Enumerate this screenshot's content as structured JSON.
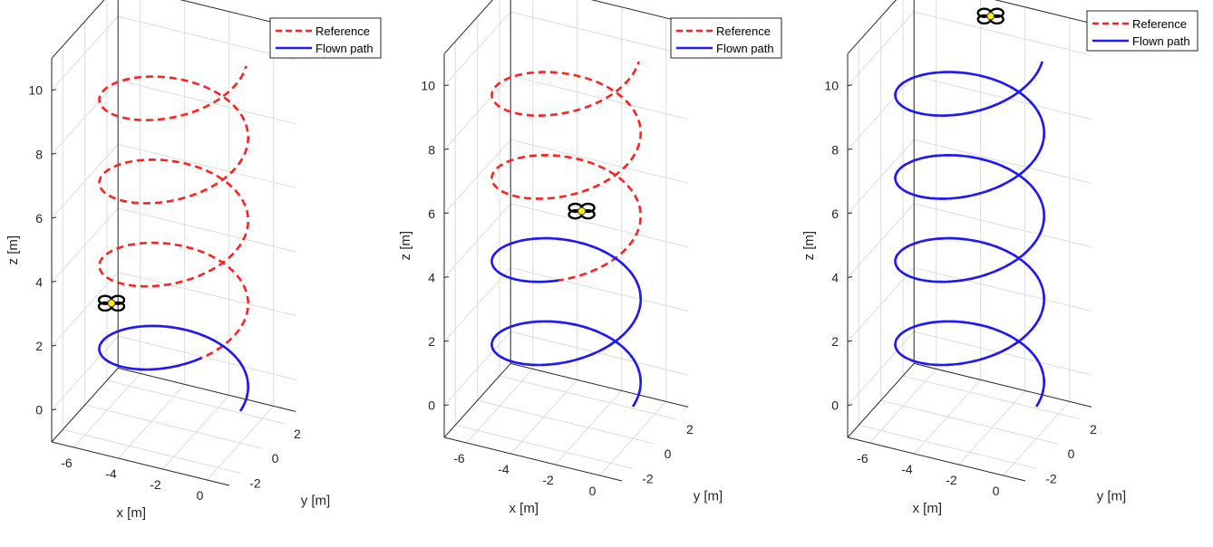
{
  "colors": {
    "reference": "#ff2020",
    "flown": "#1a1aff",
    "grid": "#dcdcdc",
    "box": "#262626",
    "drone_body": "#ffee00",
    "drone_rotor": "#000000"
  },
  "chart_data": [
    {
      "type": "line",
      "subtype": "3d-helix",
      "xlabel": "x [m]",
      "ylabel": "y [m]",
      "zlabel": "z [m]",
      "xlim": [
        -7,
        1
      ],
      "ylim": [
        -3,
        3
      ],
      "zlim": [
        -1,
        11
      ],
      "xticks": [
        "-6",
        "-4",
        "-2",
        "0"
      ],
      "yticks": [
        "-2",
        "0",
        "2"
      ],
      "zticks": [
        "0",
        "2",
        "4",
        "6",
        "8",
        "10"
      ],
      "grid": true,
      "legend": {
        "position": "top-right",
        "entries": [
          "Reference",
          "Flown path"
        ]
      },
      "reference": {
        "name": "Reference",
        "style": "dashed",
        "helix_center_x": -3,
        "helix_center_y": 0,
        "radius": 3,
        "pitch": 2.6,
        "z_start": 0,
        "z_end": 10.5
      },
      "flown": {
        "name": "Flown path",
        "style": "solid",
        "z_end": 2.3
      },
      "drone": {
        "x": -6,
        "y": 0.4,
        "z": 2.2
      }
    },
    {
      "type": "line",
      "subtype": "3d-helix",
      "xlabel": "x [m]",
      "ylabel": "y [m]",
      "zlabel": "z [m]",
      "xlim": [
        -7,
        1
      ],
      "ylim": [
        -3,
        3
      ],
      "zlim": [
        -1,
        11
      ],
      "xticks": [
        "-6",
        "-4",
        "-2",
        "0"
      ],
      "yticks": [
        "-2",
        "0",
        "2"
      ],
      "zticks": [
        "0",
        "2",
        "4",
        "6",
        "8",
        "10"
      ],
      "grid": true,
      "legend": {
        "position": "top-right",
        "entries": [
          "Reference",
          "Flown path"
        ]
      },
      "reference": {
        "name": "Reference",
        "style": "dashed",
        "helix_center_x": -3,
        "helix_center_y": 0,
        "radius": 3,
        "pitch": 2.6,
        "z_start": 0,
        "z_end": 10.5
      },
      "flown": {
        "name": "Flown path",
        "style": "solid",
        "z_end": 4.7
      },
      "drone": {
        "x": -3.6,
        "y": 2.6,
        "z": 4.5
      }
    },
    {
      "type": "line",
      "subtype": "3d-helix",
      "xlabel": "x [m]",
      "ylabel": "y [m]",
      "zlabel": "z [m]",
      "xlim": [
        -7,
        1
      ],
      "ylim": [
        -3,
        3
      ],
      "zlim": [
        -1,
        11
      ],
      "xticks": [
        "-6",
        "-4",
        "-2",
        "0"
      ],
      "yticks": [
        "-2",
        "0",
        "2"
      ],
      "zticks": [
        "0",
        "2",
        "4",
        "6",
        "8",
        "10"
      ],
      "grid": true,
      "legend": {
        "position": "top-right",
        "entries": [
          "Reference",
          "Flown path"
        ]
      },
      "reference": {
        "name": "Reference",
        "style": "dashed",
        "helix_center_x": -3,
        "helix_center_y": 0,
        "radius": 3,
        "pitch": 2.6,
        "z_start": 0,
        "z_end": 10.5
      },
      "flown": {
        "name": "Flown path",
        "style": "solid",
        "z_end": 10.5
      },
      "drone": {
        "x": -3.5,
        "y": 2.9,
        "z": 10.5
      }
    }
  ]
}
